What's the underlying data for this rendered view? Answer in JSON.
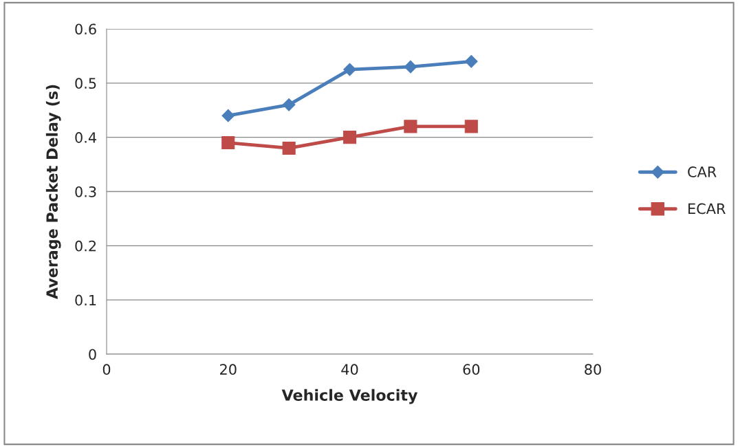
{
  "chart_data": {
    "type": "line",
    "xlabel": "Vehicle Velocity",
    "ylabel": "Average Packet Delay (s)",
    "x": [
      20,
      30,
      40,
      50,
      60
    ],
    "series": [
      {
        "name": "CAR",
        "color": "#4a7ebb",
        "marker": "diamond",
        "values": [
          0.44,
          0.46,
          0.525,
          0.53,
          0.54
        ]
      },
      {
        "name": "ECAR",
        "color": "#be4b48",
        "marker": "square",
        "values": [
          0.39,
          0.38,
          0.4,
          0.42,
          0.42
        ]
      }
    ],
    "xlim": [
      0,
      80
    ],
    "xticks": [
      0,
      20,
      40,
      60,
      80
    ],
    "ylim": [
      0,
      0.6
    ],
    "yticks": [
      {
        "value": 0,
        "label": "0"
      },
      0.1,
      0.2,
      0.3,
      0.4,
      0.5,
      0.6
    ],
    "grid": "y",
    "legend": "right",
    "line_style": "solid"
  }
}
